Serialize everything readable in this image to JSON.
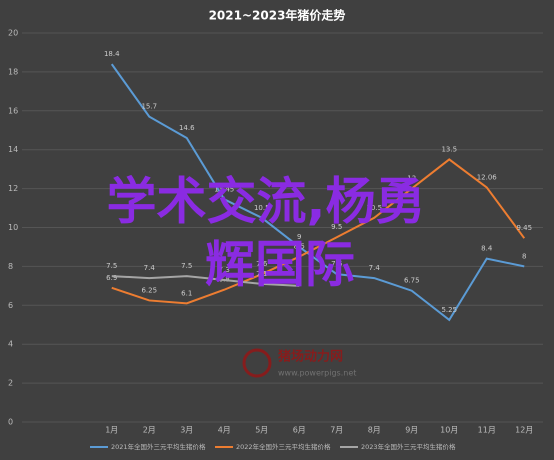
{
  "chart_data": {
    "type": "line",
    "title": "2021~2023年猪价走势",
    "categories": [
      "1月",
      "2月",
      "3月",
      "4月",
      "5月",
      "6月",
      "7月",
      "8月",
      "9月",
      "10月",
      "11月",
      "12月"
    ],
    "series": [
      {
        "name": "2021年全国外三元平均生猪价格",
        "color": "#5b9bd5",
        "values": [
          18.4,
          15.7,
          14.6,
          11.45,
          10.5,
          9,
          7.6,
          7.4,
          6.75,
          5.25,
          8.4,
          8
        ]
      },
      {
        "name": "2022年全国外三元平均生猪价格",
        "color": "#ed7d31",
        "values": [
          6.9,
          6.25,
          6.1,
          6.8,
          7.6,
          8.5,
          9.5,
          10.5,
          12,
          13.5,
          12.06,
          9.45
        ]
      },
      {
        "name": "2023年全国外三元平均生猪价格",
        "color": "#a5a5a5",
        "values": [
          7.5,
          7.4,
          7.5,
          7.3,
          7.1,
          7,
          null,
          null,
          null,
          null,
          null,
          null
        ]
      }
    ],
    "ylim": [
      0,
      20
    ],
    "yticks": [
      0,
      2,
      4,
      6,
      8,
      10,
      12,
      14,
      16,
      18,
      20
    ],
    "grid": true,
    "watermark": [
      "学术交流,杨勇",
      "辉国际"
    ],
    "logo": {
      "name": "猪场动力网",
      "url": "www.powerpigs.net"
    }
  }
}
